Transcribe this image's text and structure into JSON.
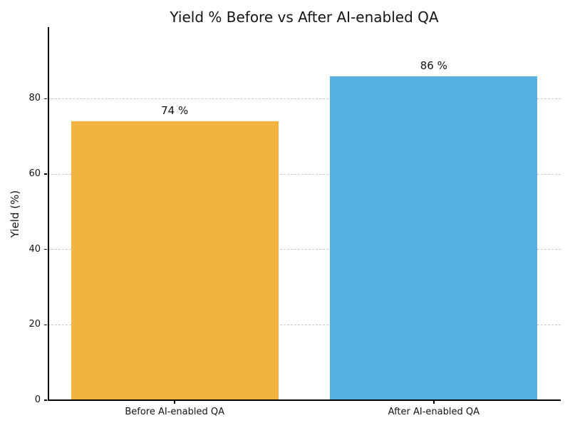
{
  "figure": {
    "background_color": "#ffffff"
  },
  "chart_data": {
    "type": "bar",
    "title": "Yield % Before vs After AI-enabled QA",
    "ylabel": "Yield (%)",
    "xlabel": "",
    "categories": [
      "Before AI-enabled QA",
      "After AI-enabled QA"
    ],
    "values": [
      74,
      86
    ],
    "value_labels": [
      "74 %",
      "86 %"
    ],
    "bar_colors": [
      "#F2B341",
      "#57B0E3"
    ],
    "ylim": [
      0,
      99
    ],
    "yticks": [
      0,
      20,
      40,
      60,
      80
    ],
    "grid": {
      "axis": "y",
      "style": "dashed",
      "color": "#cbcbcb"
    },
    "legend_position": "none",
    "axis_color": "#000000",
    "text_color": "#141414"
  }
}
